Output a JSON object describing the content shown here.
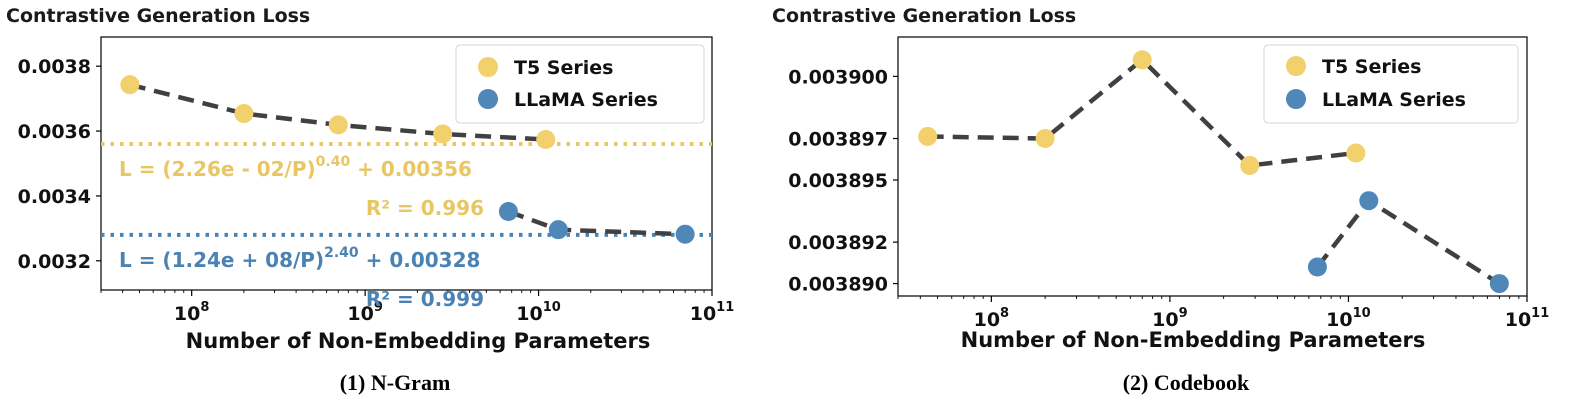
{
  "chart_data": [
    {
      "type": "scatter",
      "title": "Contrastive Generation Loss",
      "caption": "(1) N-Gram",
      "xlabel": "Number of Non-Embedding Parameters",
      "ylabel": "",
      "xscale": "log",
      "xlim": [
        30000000,
        100000000000
      ],
      "ylim": [
        0.00311,
        0.00389
      ],
      "yticks": [
        0.0032,
        0.0034,
        0.0036,
        0.0038
      ],
      "ytick_labels": [
        "0.0032",
        "0.0034",
        "0.0036",
        "0.0038"
      ],
      "xticks": [
        100000000,
        1000000000,
        10000000000,
        100000000000
      ],
      "xtick_labels": [
        {
          "base": "10",
          "exp": "8"
        },
        {
          "base": "10",
          "exp": "9"
        },
        {
          "base": "10",
          "exp": "10"
        },
        {
          "base": "10",
          "exp": "11"
        }
      ],
      "legend_position": "top-right",
      "series": [
        {
          "name": "T5 Series",
          "color": "#f2d06b",
          "x": [
            44000000,
            200000000,
            700000000,
            2800000000,
            11000000000
          ],
          "y": [
            0.003743,
            0.003654,
            0.003619,
            0.003591,
            0.003574
          ],
          "fit_color": "#e8c762",
          "fit_asymptote": 0.00356,
          "fit_equation": {
            "prefix": "L = (2.26e - 02/P)",
            "exp": "0.40",
            "suffix": " + 0.00356"
          },
          "fit_r2": "R² = 0.996"
        },
        {
          "name": "LLaMA Series",
          "color": "#4f87b8",
          "x": [
            6700000000,
            13000000000,
            70000000000
          ],
          "y": [
            0.003352,
            0.003296,
            0.003282
          ],
          "fit_color": "#4a82b4",
          "fit_asymptote": 0.00328,
          "fit_equation": {
            "prefix": "L = (1.24e + 08/P)",
            "exp": "2.40",
            "suffix": " + 0.00328"
          },
          "fit_r2": "R² = 0.999"
        }
      ]
    },
    {
      "type": "scatter",
      "title": "Contrastive Generation Loss",
      "caption": "(2) Codebook",
      "xlabel": "Number of Non-Embedding Parameters",
      "ylabel": "",
      "xscale": "log",
      "xlim": [
        30000000,
        100000000000
      ],
      "ylim": [
        0.0038894,
        0.0039019
      ],
      "yticks": [
        0.00389,
        0.003892,
        0.003895,
        0.003897,
        0.0039
      ],
      "ytick_labels": [
        "0.003890",
        "0.003892",
        "0.003895",
        "0.003897",
        "0.003900"
      ],
      "xticks": [
        100000000,
        1000000000,
        10000000000,
        100000000000
      ],
      "xtick_labels": [
        {
          "base": "10",
          "exp": "8"
        },
        {
          "base": "10",
          "exp": "9"
        },
        {
          "base": "10",
          "exp": "10"
        },
        {
          "base": "10",
          "exp": "11"
        }
      ],
      "legend_position": "top-right",
      "series": [
        {
          "name": "T5 Series",
          "color": "#f2d06b",
          "x": [
            44000000,
            200000000,
            700000000,
            2800000000,
            11000000000
          ],
          "y": [
            0.0038971,
            0.003897,
            0.0039008,
            0.0038957,
            0.0038963
          ]
        },
        {
          "name": "LLaMA Series",
          "color": "#4f87b8",
          "x": [
            6700000000,
            13000000000,
            70000000000
          ],
          "y": [
            0.0038908,
            0.003894,
            0.00389
          ]
        }
      ]
    }
  ]
}
